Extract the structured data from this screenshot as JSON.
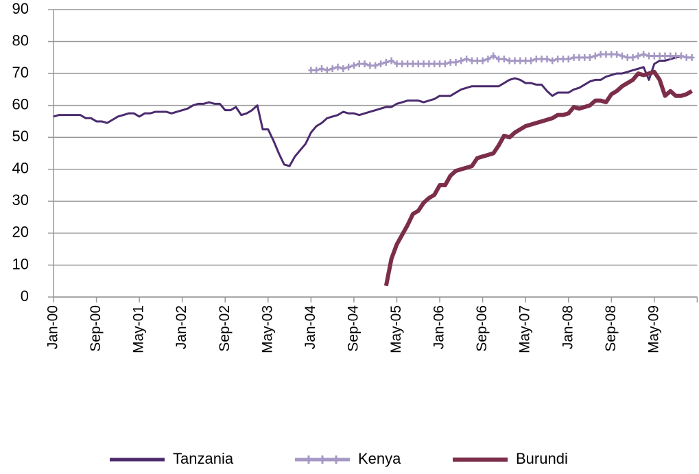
{
  "chart_data": {
    "type": "line",
    "categories": [
      "Jan-00",
      null,
      null,
      null,
      null,
      null,
      null,
      null,
      "Sep-00",
      null,
      null,
      null,
      null,
      null,
      null,
      null,
      "May-01",
      null,
      null,
      null,
      null,
      null,
      null,
      null,
      "Jan-02",
      null,
      null,
      null,
      null,
      null,
      null,
      null,
      "Sep-02",
      null,
      null,
      null,
      null,
      null,
      null,
      null,
      "May-03",
      null,
      null,
      null,
      null,
      null,
      null,
      null,
      "Jan-04",
      null,
      null,
      null,
      null,
      null,
      null,
      null,
      "Sep-04",
      null,
      null,
      null,
      null,
      null,
      null,
      null,
      "May-05",
      null,
      null,
      null,
      null,
      null,
      null,
      null,
      "Jan-06",
      null,
      null,
      null,
      null,
      null,
      null,
      null,
      "Sep-06",
      null,
      null,
      null,
      null,
      null,
      null,
      null,
      "May-07",
      null,
      null,
      null,
      null,
      null,
      null,
      null,
      "Jan-08",
      null,
      null,
      null,
      null,
      null,
      null,
      null,
      "Sep-08",
      null,
      null,
      null,
      null,
      null,
      null,
      null,
      "May-09",
      null,
      null,
      null,
      null,
      null,
      null,
      null
    ],
    "series": [
      {
        "name": "Tanzania",
        "color": "#4b2a6e",
        "values": [
          56.5,
          57,
          57,
          57,
          57,
          57,
          56,
          56,
          55,
          55,
          54.5,
          55.5,
          56.5,
          57,
          57.5,
          57.5,
          56.5,
          57.5,
          57.5,
          58,
          58,
          58,
          57.5,
          58,
          58.5,
          59,
          60,
          60.5,
          60.5,
          61,
          60.5,
          60.5,
          58.5,
          58.5,
          59.5,
          57,
          57.5,
          58.5,
          60,
          52.5,
          52.5,
          49,
          45,
          41.5,
          41,
          44,
          46,
          48,
          51.5,
          53.5,
          54.5,
          56,
          56.5,
          57,
          58,
          57.5,
          57.5,
          57,
          57.5,
          58,
          58.5,
          59,
          59.5,
          59.5,
          60.5,
          61,
          61.5,
          61.5,
          61.5,
          61,
          61.5,
          62,
          63,
          63,
          63,
          64,
          65,
          65.5,
          66,
          66,
          66,
          66,
          66,
          66,
          67,
          68,
          68.5,
          68,
          67,
          67,
          66.5,
          66.5,
          64.5,
          63,
          64,
          64,
          64,
          65,
          65.5,
          66.5,
          67.5,
          68,
          68,
          69,
          69.5,
          70,
          70,
          70.5,
          71,
          71.5,
          72,
          68,
          73,
          74,
          74,
          74.5,
          75,
          75.5,
          75,
          75
        ]
      },
      {
        "name": "Kenya",
        "color": "#a598c4",
        "values": [
          null,
          null,
          null,
          null,
          null,
          null,
          null,
          null,
          null,
          null,
          null,
          null,
          null,
          null,
          null,
          null,
          null,
          null,
          null,
          null,
          null,
          null,
          null,
          null,
          null,
          null,
          null,
          null,
          null,
          null,
          null,
          null,
          null,
          null,
          null,
          null,
          null,
          null,
          null,
          null,
          null,
          null,
          null,
          null,
          null,
          null,
          null,
          null,
          71,
          71,
          71.5,
          71,
          71.5,
          72,
          71.5,
          72,
          72.5,
          73,
          73,
          72.5,
          72.5,
          73,
          73.5,
          74,
          73,
          73,
          73,
          73,
          73,
          73,
          73,
          73,
          73,
          73,
          73.5,
          73.5,
          74,
          74.5,
          74,
          74,
          74,
          74.5,
          75.5,
          74.5,
          74.5,
          74,
          74,
          74,
          74,
          74,
          74.5,
          74.5,
          74.5,
          74,
          74.5,
          74.5,
          74.5,
          75,
          75,
          75,
          75,
          75.5,
          76,
          76,
          76,
          76,
          75.5,
          75,
          75,
          75.5,
          76,
          75.5,
          75.5,
          75.5,
          75.5,
          75.5,
          75.5,
          75.5,
          75,
          75
        ]
      },
      {
        "name": "Burundi",
        "color": "#7b2d4a",
        "values": [
          null,
          null,
          null,
          null,
          null,
          null,
          null,
          null,
          null,
          null,
          null,
          null,
          null,
          null,
          null,
          null,
          null,
          null,
          null,
          null,
          null,
          null,
          null,
          null,
          null,
          null,
          null,
          null,
          null,
          null,
          null,
          null,
          null,
          null,
          null,
          null,
          null,
          null,
          null,
          null,
          null,
          null,
          null,
          null,
          null,
          null,
          null,
          null,
          null,
          null,
          null,
          null,
          null,
          null,
          null,
          null,
          null,
          null,
          null,
          null,
          null,
          null,
          3.5,
          12,
          16.5,
          19.5,
          22.5,
          26,
          27,
          29.5,
          31,
          32,
          35,
          35,
          38,
          39.5,
          40,
          40.5,
          41,
          43.5,
          44,
          44.5,
          45,
          47.5,
          50.5,
          50,
          51.5,
          52.5,
          53.5,
          54,
          54.5,
          55,
          55.5,
          56,
          57,
          57,
          57.5,
          59.5,
          59,
          59.5,
          60,
          61.5,
          61.5,
          61,
          63.5,
          64.5,
          66,
          67,
          68,
          70,
          69.5,
          70,
          70.5,
          68,
          63,
          64.5,
          63,
          63,
          63.5,
          64.5
        ]
      }
    ],
    "ylim": [
      0,
      90
    ],
    "yticks": [
      0,
      10,
      20,
      30,
      40,
      50,
      60,
      70,
      80,
      90
    ],
    "grid": true,
    "legend": "bottom"
  }
}
